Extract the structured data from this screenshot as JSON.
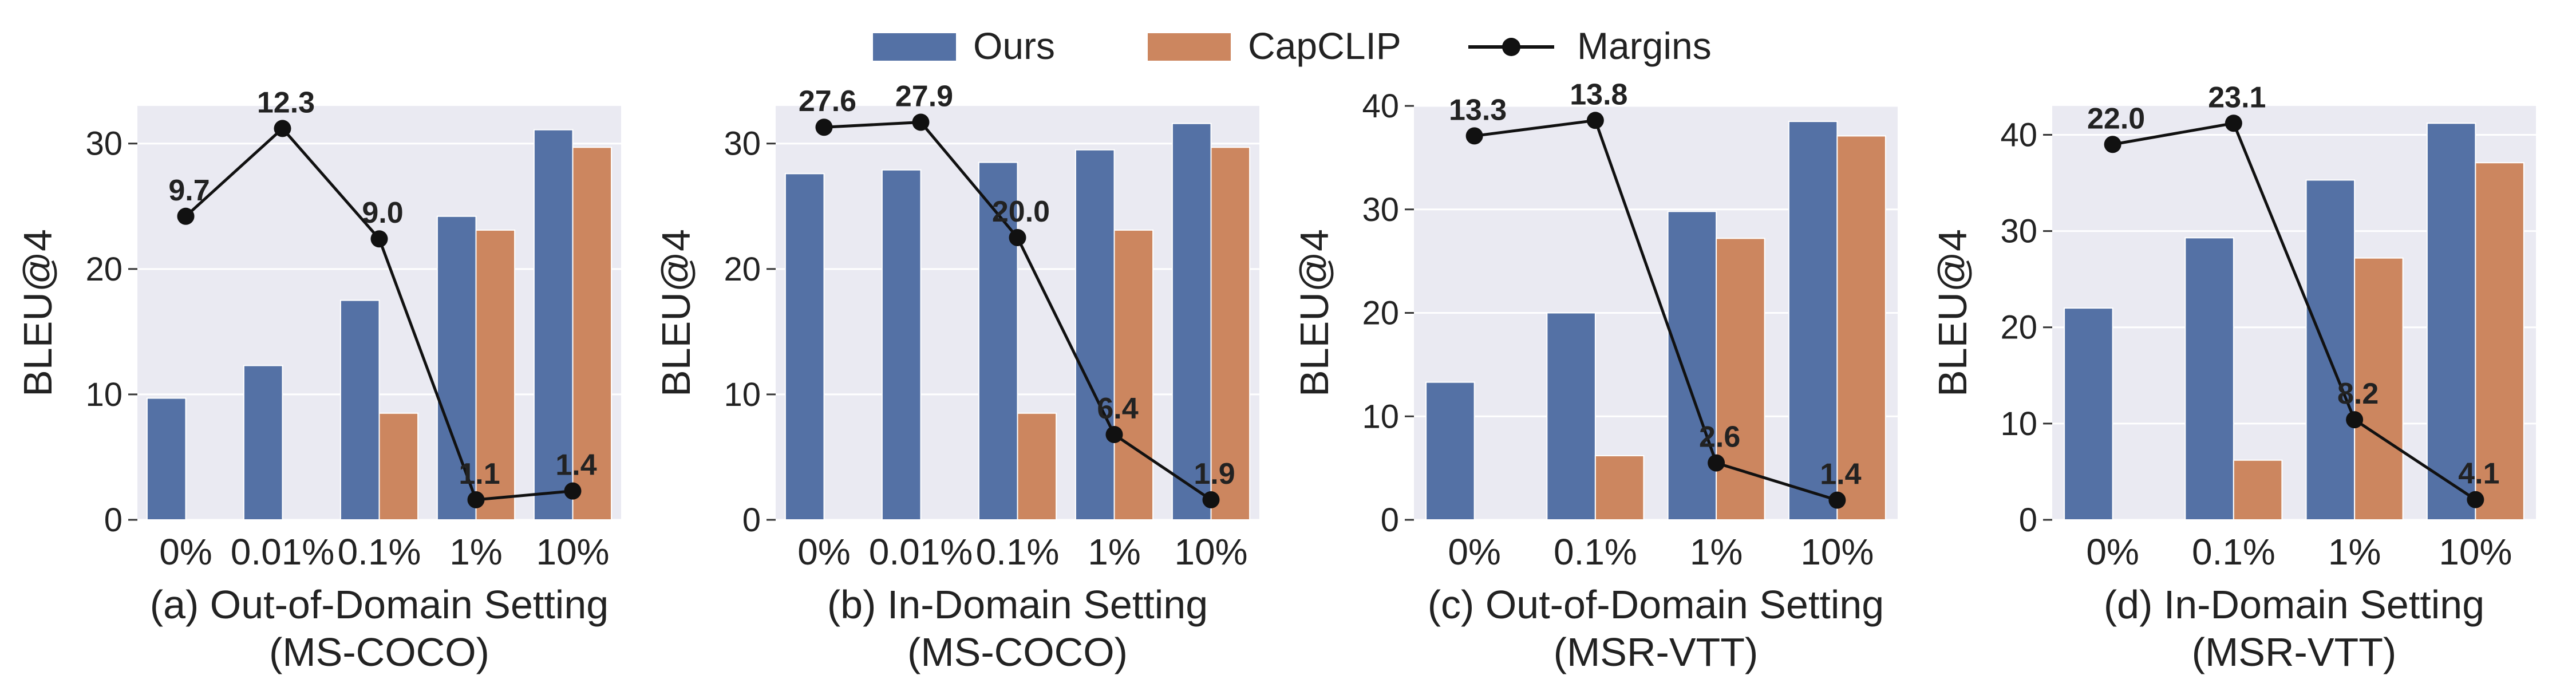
{
  "legend": [
    {
      "label": "Ours",
      "color": "#5471a5",
      "kind": "bar"
    },
    {
      "label": "CapCLIP",
      "color": "#cc865f",
      "kind": "bar"
    },
    {
      "label": "Margins",
      "color": "#111111",
      "kind": "line"
    }
  ],
  "chart_data": [
    {
      "type": "bar",
      "categories": [
        "0%",
        "0.01%",
        "0.1%",
        "1%",
        "10%"
      ],
      "series": [
        {
          "name": "Ours",
          "values": [
            9.7,
            12.3,
            17.5,
            24.2,
            31.1
          ]
        },
        {
          "name": "CapCLIP",
          "values": [
            null,
            null,
            8.5,
            23.1,
            29.7
          ]
        }
      ],
      "margins": {
        "name": "Margins",
        "values": [
          24.2,
          31.2,
          22.4,
          1.6,
          2.3
        ],
        "labels": [
          "9.7",
          "12.3",
          "9.0",
          "1.1",
          "1.4"
        ]
      },
      "ylabel": "BLEU@4",
      "ylim": [
        0,
        33
      ],
      "yticks": [
        0,
        10,
        20,
        30
      ],
      "caption_line1": "(a) Out-of-Domain Setting",
      "caption_line2": "(MS-COCO)"
    },
    {
      "type": "bar",
      "categories": [
        "0%",
        "0.01%",
        "0.1%",
        "1%",
        "10%"
      ],
      "series": [
        {
          "name": "Ours",
          "values": [
            27.6,
            27.9,
            28.5,
            29.5,
            31.6
          ]
        },
        {
          "name": "CapCLIP",
          "values": [
            null,
            null,
            8.5,
            23.1,
            29.7
          ]
        }
      ],
      "margins": {
        "name": "Margins",
        "values": [
          31.3,
          31.7,
          22.5,
          6.8,
          1.6
        ],
        "labels": [
          "27.6",
          "27.9",
          "20.0",
          "6.4",
          "1.9"
        ]
      },
      "ylabel": "BLEU@4",
      "ylim": [
        0,
        33
      ],
      "yticks": [
        0,
        10,
        20,
        30
      ],
      "caption_line1": "(b) In-Domain Setting",
      "caption_line2": "(MS-COCO)"
    },
    {
      "type": "bar",
      "categories": [
        "0%",
        "0.1%",
        "1%",
        "10%"
      ],
      "series": [
        {
          "name": "Ours",
          "values": [
            13.3,
            20.0,
            29.8,
            38.5
          ]
        },
        {
          "name": "CapCLIP",
          "values": [
            null,
            6.2,
            27.2,
            37.1
          ]
        }
      ],
      "margins": {
        "name": "Margins",
        "values": [
          37.1,
          38.6,
          5.5,
          1.9
        ],
        "labels": [
          "13.3",
          "13.8",
          "2.6",
          "1.4"
        ]
      },
      "ylabel": "BLEU@4",
      "ylim": [
        0,
        40
      ],
      "yticks": [
        0,
        10,
        20,
        30,
        40
      ],
      "caption_line1": "(c) Out-of-Domain Setting",
      "caption_line2": "(MSR-VTT)"
    },
    {
      "type": "bar",
      "categories": [
        "0%",
        "0.1%",
        "1%",
        "10%"
      ],
      "series": [
        {
          "name": "Ours",
          "values": [
            22.0,
            29.3,
            35.3,
            41.2
          ]
        },
        {
          "name": "CapCLIP",
          "values": [
            null,
            6.2,
            27.2,
            37.1
          ]
        }
      ],
      "margins": {
        "name": "Margins",
        "values": [
          39.0,
          41.2,
          10.4,
          2.1
        ],
        "labels": [
          "22.0",
          "23.1",
          "8.2",
          "4.1"
        ]
      },
      "ylabel": "BLEU@4",
      "ylim": [
        0,
        43
      ],
      "yticks": [
        0,
        10,
        20,
        30,
        40
      ],
      "caption_line1": "(d) In-Domain Setting",
      "caption_line2": "(MSR-VTT)"
    }
  ]
}
